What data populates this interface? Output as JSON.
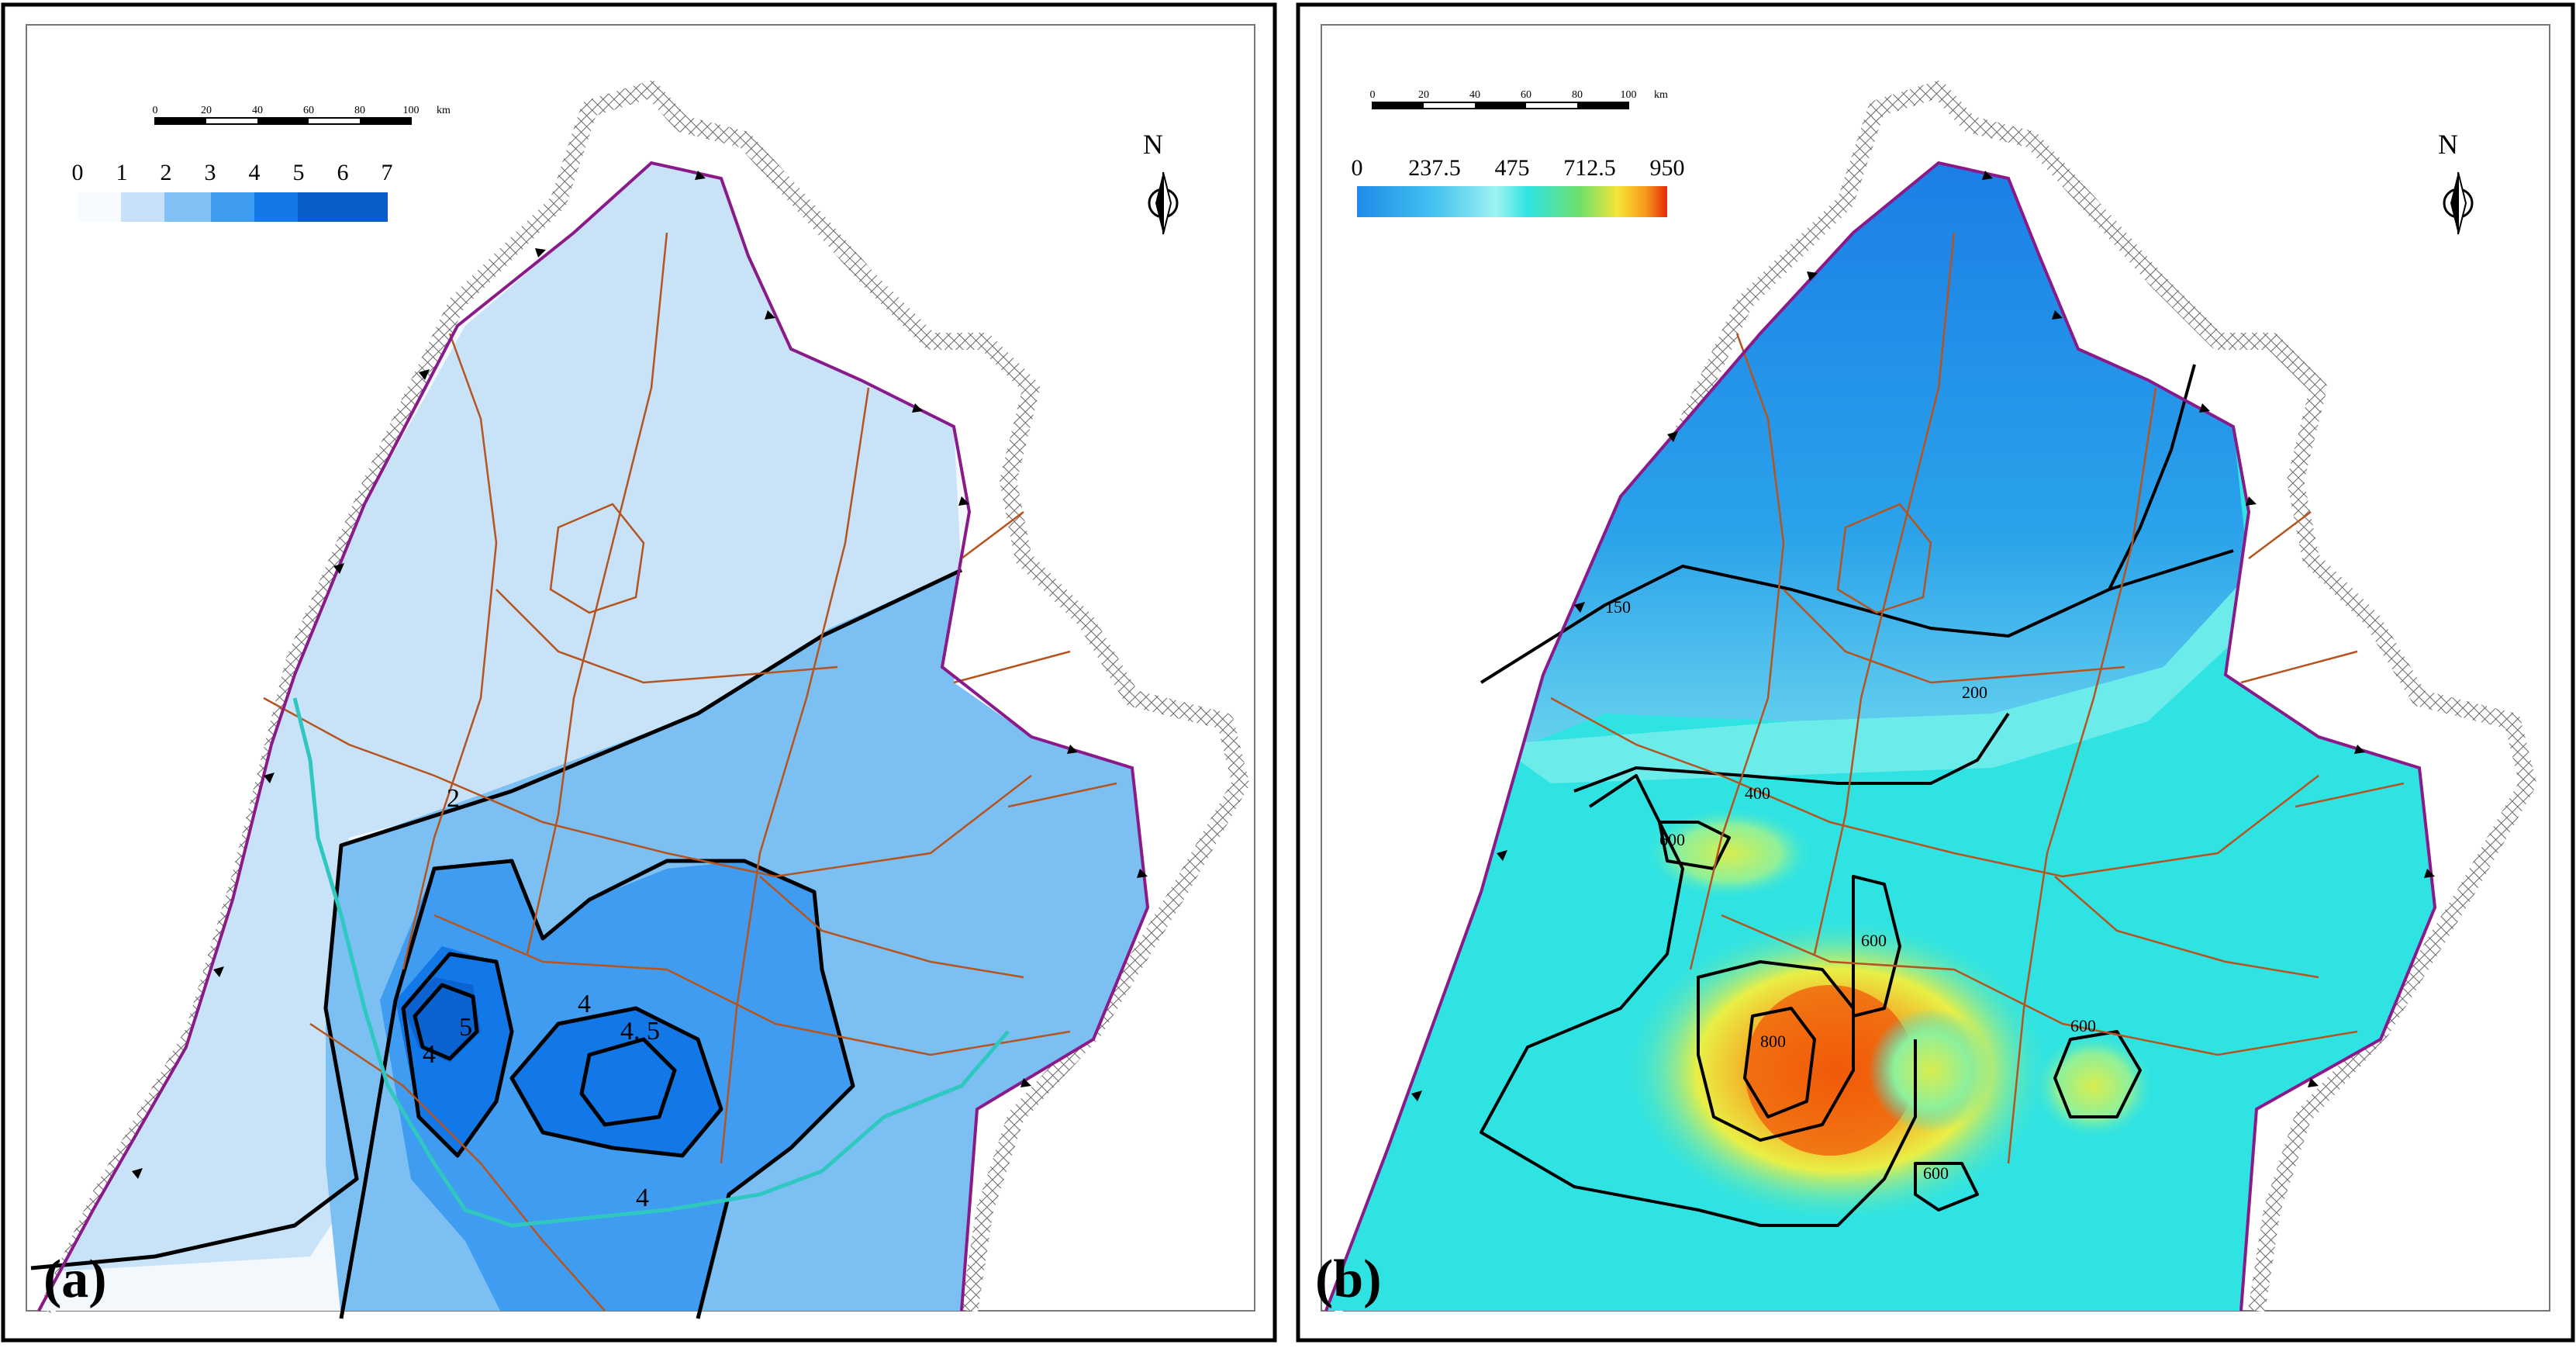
{
  "panel_a": {
    "label": "(a)",
    "north": "N",
    "scale_ticks": [
      "0",
      "20",
      "40",
      "60",
      "80",
      "100"
    ],
    "scale_unit": "km",
    "legend_ticks": [
      "0",
      "1",
      "2",
      "3",
      "4",
      "5",
      "6",
      "7"
    ],
    "legend_colors": [
      "#f7fbff",
      "#c6e1f8",
      "#80c0f2",
      "#3d9cf0",
      "#1478e6",
      "#0a5cc8",
      "#0a5cc8"
    ],
    "contour_labels": [
      "2",
      "4",
      "4. 5",
      "4",
      "5",
      "4"
    ],
    "colors": {
      "zone_low": "#f3f8fd",
      "zone_1": "#c8e2f8",
      "zone_2": "#7cbff3",
      "zone_3": "#3f9cf0",
      "zone_4": "#1278e7",
      "zone_5": "#0a63d0",
      "boundary": "#8a1a8a",
      "fault": "#b5541f",
      "river": "#2fc8c0"
    }
  },
  "panel_b": {
    "label": "(b)",
    "north": "N",
    "scale_ticks": [
      "0",
      "20",
      "40",
      "60",
      "80",
      "100"
    ],
    "scale_unit": "km",
    "legend_ticks": [
      "0",
      "237.5",
      "475",
      "712.5",
      "950"
    ],
    "contour_labels": [
      "150",
      "200",
      "400",
      "600",
      "600",
      "600",
      "600",
      "800"
    ],
    "colors": {
      "low": "#1e8be8",
      "mid": "#2fe3e3",
      "high": "#f9e63a",
      "max": "#f05a0a",
      "boundary": "#8a1a8a",
      "fault": "#b5541f"
    }
  }
}
